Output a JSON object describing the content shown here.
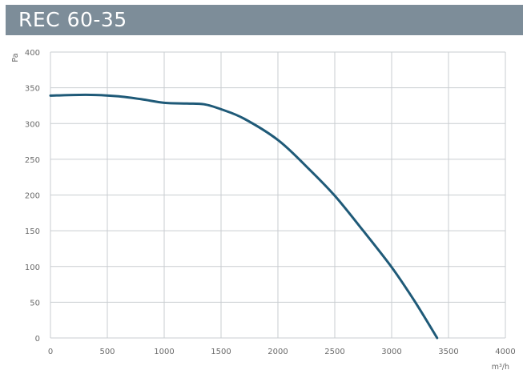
{
  "title": "REC 60-35",
  "chart_data": {
    "type": "line",
    "title": "REC 60-35",
    "xlabel": "m³/h",
    "ylabel": "Pa",
    "xlim": [
      0,
      4000
    ],
    "ylim": [
      0,
      400
    ],
    "x_ticks": [
      0,
      500,
      1000,
      1500,
      2000,
      2500,
      3000,
      3500,
      4000
    ],
    "y_ticks": [
      0,
      50,
      100,
      150,
      200,
      250,
      300,
      350,
      400
    ],
    "x_tick_labels": [
      "0",
      "500",
      "1000",
      "1500",
      "2000",
      "2500",
      "3000",
      "3500",
      "4000"
    ],
    "y_tick_labels": [
      "0",
      "50",
      "100",
      "150",
      "200",
      "250",
      "300",
      "350",
      "400"
    ],
    "grid": true,
    "series": [
      {
        "color": "#1f5a78",
        "x": [
          0,
          200,
          400,
          600,
          800,
          1000,
          1200,
          1350,
          1500,
          1700,
          2000,
          2250,
          2500,
          2750,
          3000,
          3200,
          3400
        ],
        "y": [
          339,
          340,
          340,
          338,
          334,
          329,
          328,
          327,
          320,
          307,
          277,
          240,
          199,
          150,
          99,
          52,
          0
        ]
      }
    ]
  }
}
